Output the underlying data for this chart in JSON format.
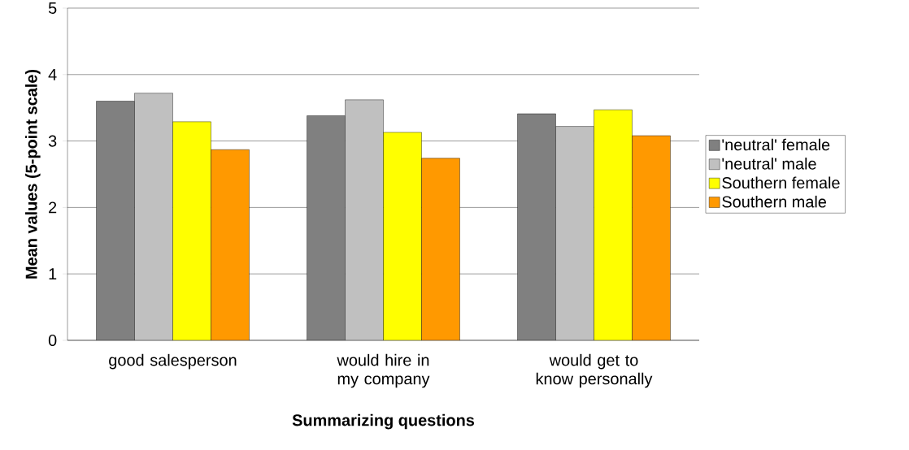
{
  "chart_data": {
    "type": "bar",
    "categories": [
      "good salesperson",
      "would hire in my company",
      "would get to know personally"
    ],
    "series": [
      {
        "name": "'neutral' female",
        "color": "#808080",
        "values": [
          3.6,
          3.38,
          3.41
        ]
      },
      {
        "name": "'neutral' male",
        "color": "#c0c0c0",
        "values": [
          3.72,
          3.62,
          3.22
        ]
      },
      {
        "name": "Southern female",
        "color": "#ffff00",
        "values": [
          3.29,
          3.13,
          3.47
        ]
      },
      {
        "name": "Southern male",
        "color": "#ff9900",
        "values": [
          2.87,
          2.74,
          3.08
        ]
      }
    ],
    "xlabel": "Summarizing questions",
    "ylabel": "Mean values (5-point scale)",
    "ylim": [
      0,
      5
    ],
    "yticks": [
      0,
      1,
      2,
      3,
      4,
      5
    ],
    "grid": "y",
    "legend": "right"
  }
}
